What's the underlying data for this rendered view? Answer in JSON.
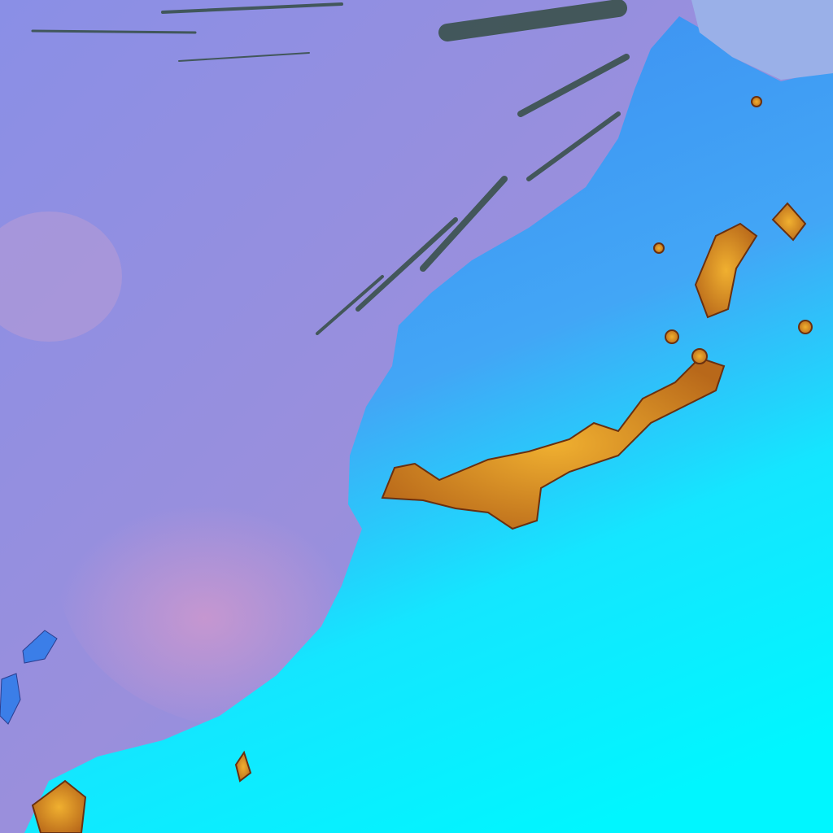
{
  "image": {
    "kind": "false-color satellite scene",
    "colors": {
      "ocean": "#8c8fe0",
      "ocean_haze": "#c98fd0",
      "land_north": "#3f9cf2",
      "land_south": "#00f2ff",
      "mountains": "#e0a020",
      "cloud_streaks": "#3a4a3a"
    }
  }
}
